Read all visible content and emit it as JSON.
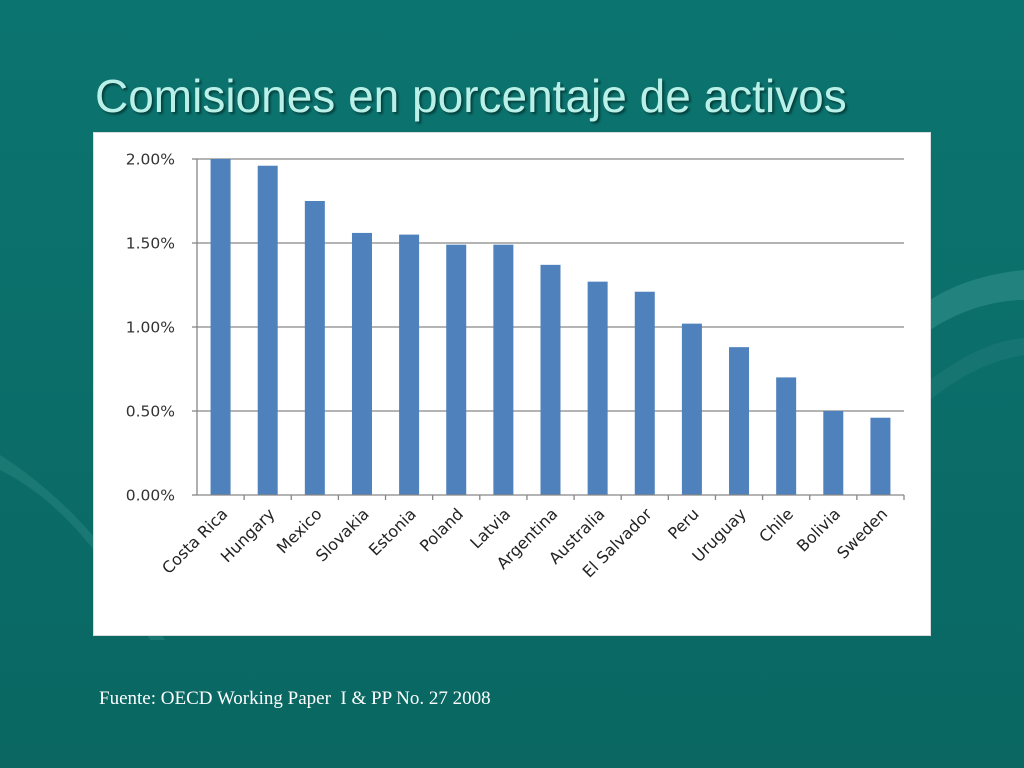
{
  "slide": {
    "title": "Comisiones en porcentaje de activos",
    "source": "Fuente: OECD Working Paper  I & PP No. 27 2008"
  },
  "colors": {
    "background": "#0b6f6a",
    "title": "#b9f0e8",
    "bar": "#4f81bd",
    "gridline": "#868686"
  },
  "chart_data": {
    "type": "bar",
    "categories": [
      "Costa Rica",
      "Hungary",
      "Mexico",
      "Slovakia",
      "Estonia",
      "Poland",
      "Latvia",
      "Argentina",
      "Australia",
      "El Salvador",
      "Peru",
      "Uruguay",
      "Chile",
      "Bolivia",
      "Sweden"
    ],
    "values": [
      2.0,
      1.96,
      1.75,
      1.56,
      1.55,
      1.49,
      1.49,
      1.37,
      1.27,
      1.21,
      1.02,
      0.88,
      0.7,
      0.5,
      0.46
    ],
    "ylim": [
      0,
      2.0
    ],
    "yticks": [
      "0.00%",
      "0.50%",
      "1.00%",
      "1.50%",
      "2.00%"
    ],
    "grid": true,
    "legend": false
  }
}
